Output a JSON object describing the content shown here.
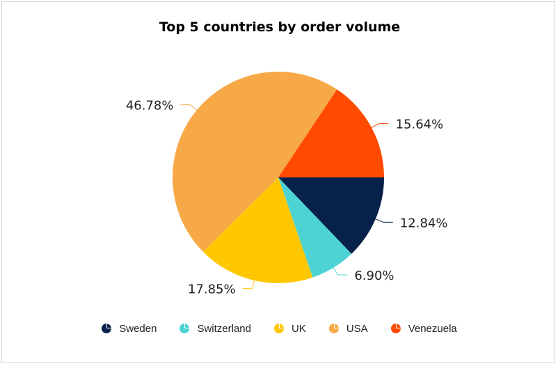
{
  "chart_data": {
    "type": "pie",
    "title": "Top 5 countries by order volume",
    "slices": [
      {
        "name": "Sweden",
        "value": 12.84,
        "label": "12.84%",
        "color": "#07224a"
      },
      {
        "name": "Switzerland",
        "value": 6.9,
        "label": "6.90%",
        "color": "#4dd3d3"
      },
      {
        "name": "UK",
        "value": 17.85,
        "label": "17.85%",
        "color": "#ffc700"
      },
      {
        "name": "USA",
        "value": 46.78,
        "label": "46.78%",
        "color": "#f7a947"
      },
      {
        "name": "Venezuela",
        "value": 15.64,
        "label": "15.64%",
        "color": "#ff4a00"
      }
    ],
    "legend_position": "bottom",
    "start_direction": "clockwise from 3 o'clock"
  }
}
